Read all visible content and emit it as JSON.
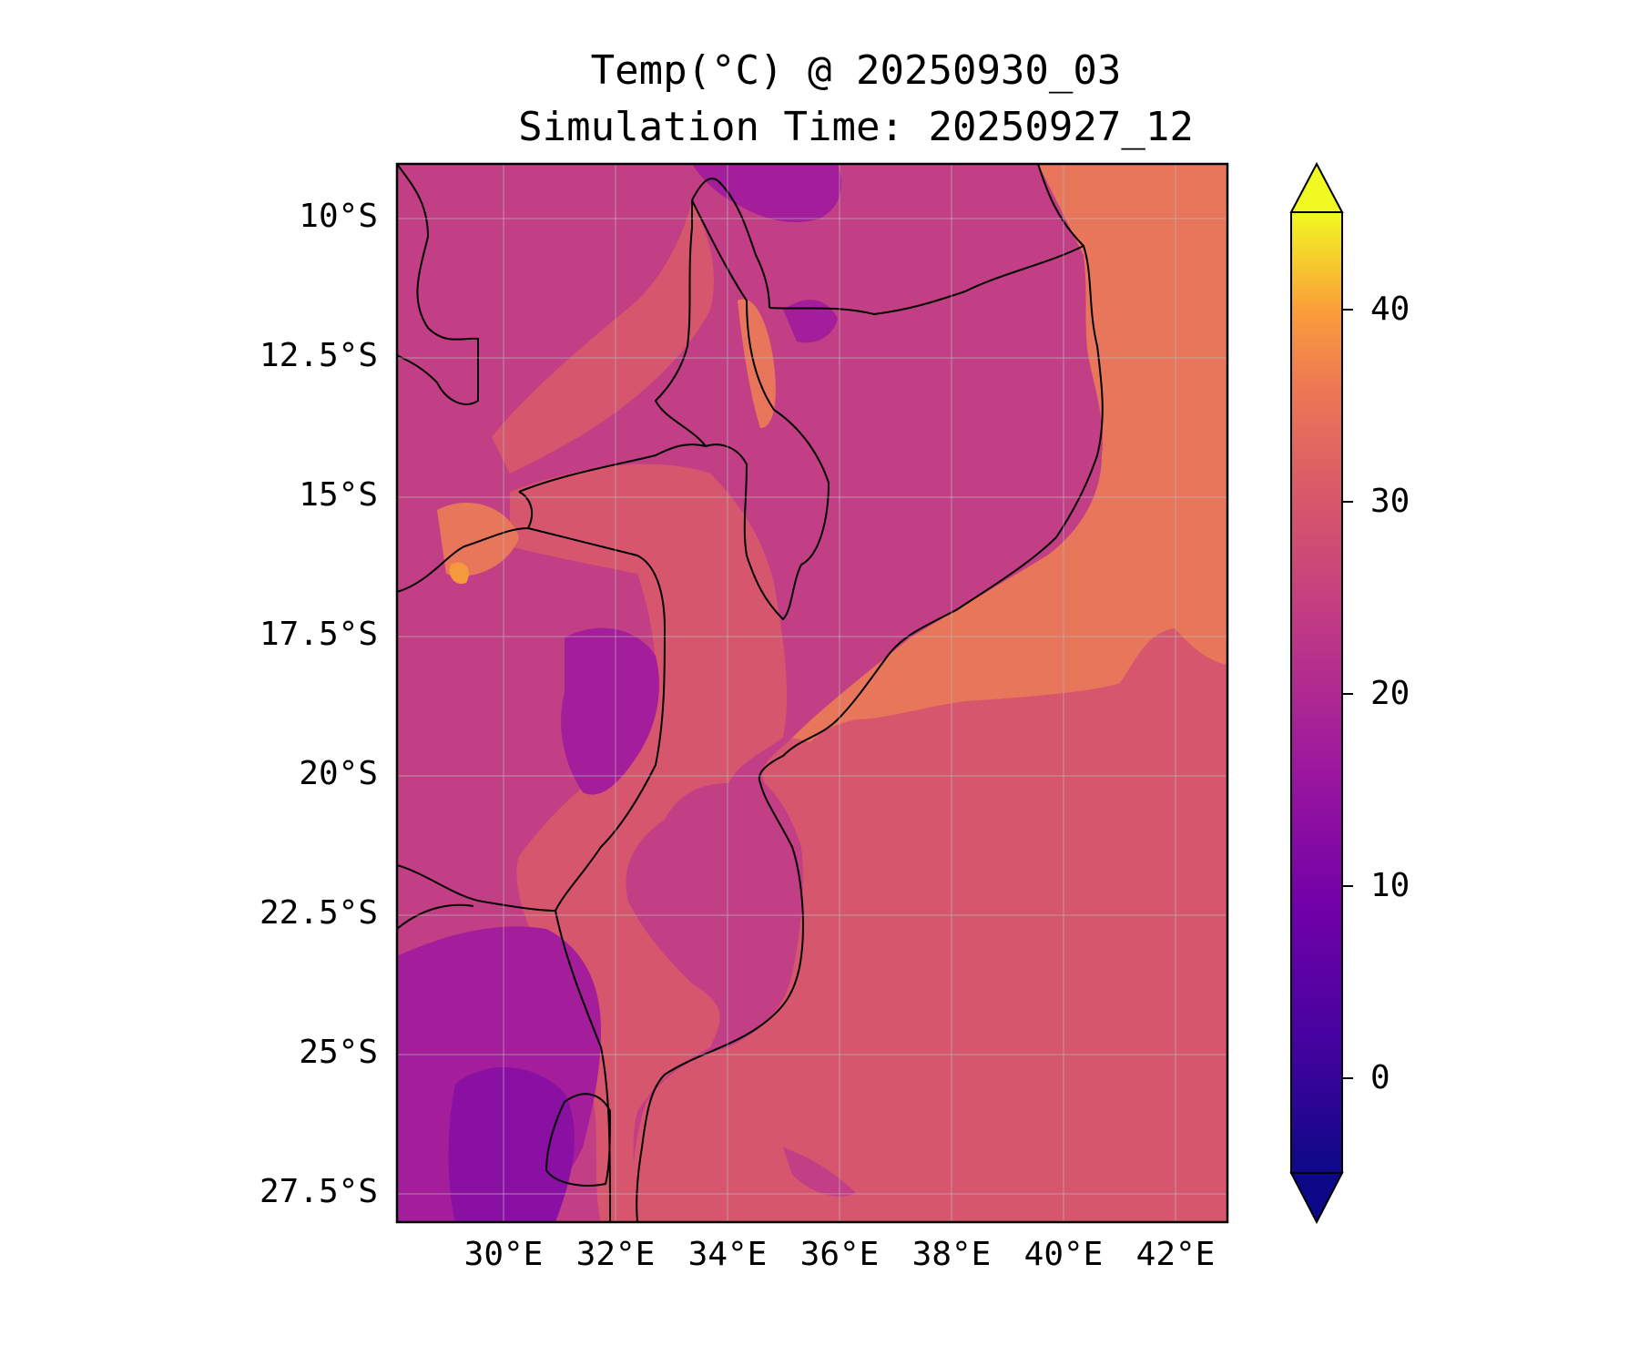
{
  "title": {
    "line1": "Temp(°C) @ 20250930_03",
    "line2": "Simulation Time: 20250927_12"
  },
  "axes": {
    "y_ticks": [
      "10°S",
      "12.5°S",
      "15°S",
      "17.5°S",
      "20°S",
      "22.5°S",
      "25°S",
      "27.5°S"
    ],
    "x_ticks": [
      "30°E",
      "32°E",
      "34°E",
      "36°E",
      "38°E",
      "40°E",
      "42°E"
    ]
  },
  "colorbar": {
    "ticks": [
      "40",
      "30",
      "20",
      "10",
      "0"
    ],
    "colormap": "plasma",
    "extend": "both"
  },
  "colors": {
    "ocean_north": "#e8765a",
    "ocean_south": "#d6576d",
    "land_mid": "#c33f85",
    "land_cool": "#a41d9a",
    "land_cold": "#8a10a3",
    "land_warm": "#e8765a",
    "land_hot": "#f59a3c",
    "border": "#000000"
  }
}
